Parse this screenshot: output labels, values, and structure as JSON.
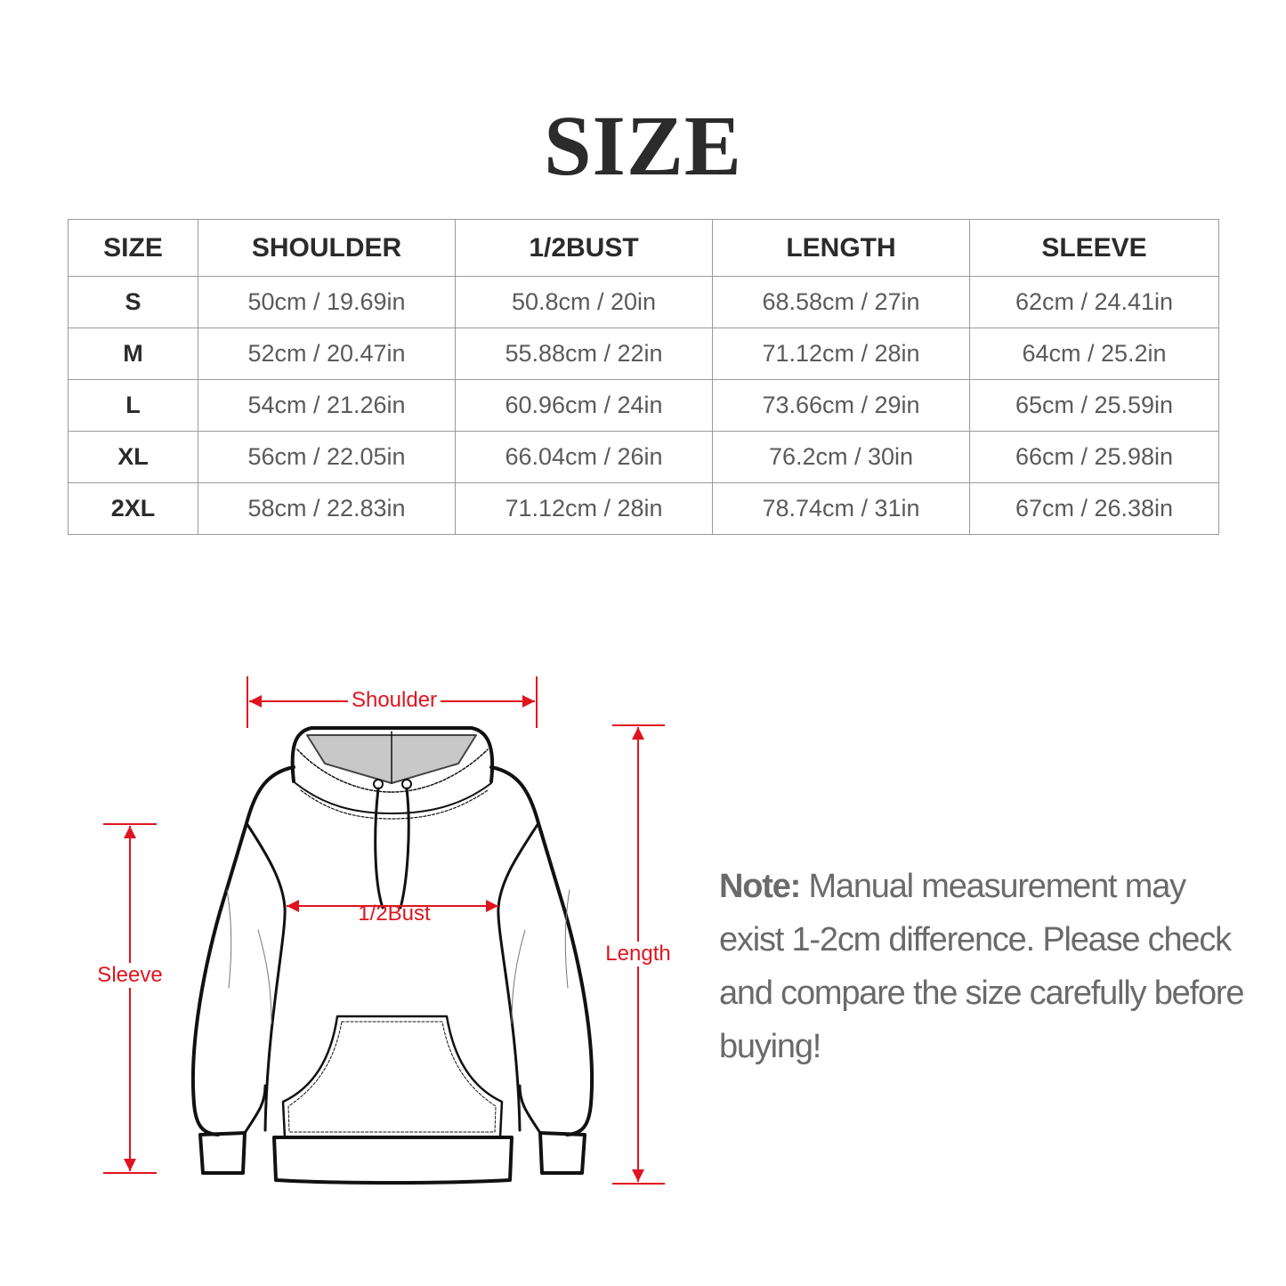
{
  "title": "SIZE",
  "table": {
    "headers": [
      "SIZE",
      "SHOULDER",
      "1/2BUST",
      "LENGTH",
      "SLEEVE"
    ],
    "rows": [
      [
        "S",
        "50cm / 19.69in",
        "50.8cm / 20in",
        "68.58cm / 27in",
        "62cm / 24.41in"
      ],
      [
        "M",
        "52cm / 20.47in",
        "55.88cm / 22in",
        "71.12cm / 28in",
        "64cm / 25.2in"
      ],
      [
        "L",
        "54cm / 21.26in",
        "60.96cm / 24in",
        "73.66cm / 29in",
        "65cm / 25.59in"
      ],
      [
        "XL",
        "56cm / 22.05in",
        "66.04cm / 26in",
        "76.2cm / 30in",
        "66cm / 25.98in"
      ],
      [
        "2XL",
        "58cm / 22.83in",
        "71.12cm / 28in",
        "78.74cm / 31in",
        "67cm / 26.38in"
      ]
    ]
  },
  "diagram": {
    "shoulder_label": "Shoulder",
    "bust_label": "1/2Bust",
    "length_label": "Length",
    "sleeve_label": "Sleeve",
    "annotation_color": "#e0141e"
  },
  "note": {
    "prefix": "Note:",
    "text": "Manual measurement may exist 1-2cm difference. Please check and compare the size carefully before buying!"
  }
}
